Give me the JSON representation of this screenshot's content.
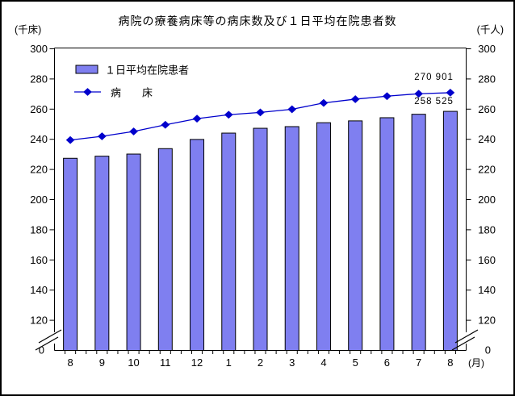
{
  "chart_data": {
    "type": "bar+line",
    "title": "病院の療養病床等の病床数及び１日平均在院患者数",
    "left_axis_unit": "(千床)",
    "right_axis_unit": "(千人)",
    "x_axis_unit": "(月)",
    "categories": [
      "8",
      "9",
      "10",
      "11",
      "12",
      "1",
      "2",
      "3",
      "4",
      "5",
      "6",
      "7",
      "8"
    ],
    "y_tick_labels": [
      300,
      280,
      260,
      240,
      220,
      200,
      180,
      160,
      140,
      120
    ],
    "y_zero_label": "0",
    "y_axis_break": true,
    "ylim": [
      120,
      300
    ],
    "gridlines": false,
    "legend_position": "top-left-inside",
    "series": [
      {
        "name": "１日平均在院患者",
        "type": "bar",
        "color": "#7f7ff0",
        "border_color": "#000000",
        "values": [
          227.4,
          228.8,
          230.2,
          233.8,
          239.9,
          244.1,
          247.3,
          248.4,
          251.0,
          252.2,
          254.3,
          256.6,
          258.525
        ],
        "last_point_label": "258 525"
      },
      {
        "name": "病　　床",
        "type": "line",
        "marker": "diamond",
        "color": "#0000cc",
        "values": [
          239.5,
          242.0,
          245.2,
          249.6,
          253.7,
          256.3,
          257.8,
          259.9,
          264.1,
          266.6,
          268.6,
          270.2,
          270.901
        ],
        "last_point_label": "270 901"
      }
    ]
  }
}
